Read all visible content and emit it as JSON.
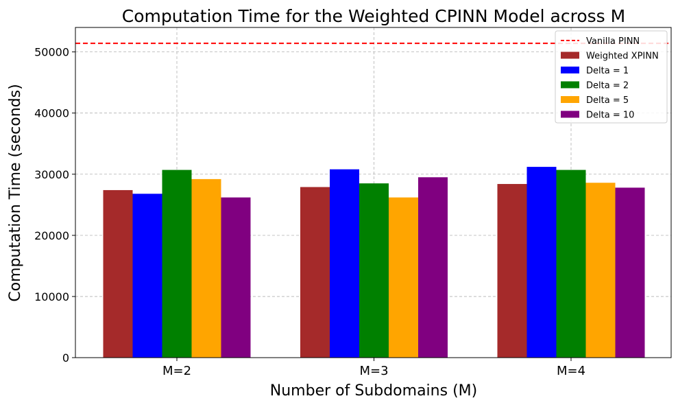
{
  "chart_data": {
    "type": "bar",
    "title": "Computation Time for the Weighted CPINN Model across M",
    "xlabel": "Number of Subdomains (M)",
    "ylabel": "Computation Time (seconds)",
    "categories": [
      "M=2",
      "M=3",
      "M=4"
    ],
    "ylim": [
      0,
      54000
    ],
    "yticks": [
      0,
      10000,
      20000,
      30000,
      40000,
      50000
    ],
    "grid": true,
    "legend_position": "top-right",
    "reference_line": {
      "name": "Vanilla PINN",
      "value": 51400,
      "color": "#ff0000",
      "style": "dashed"
    },
    "series": [
      {
        "name": "Weighted XPINN",
        "color": "#a52a2a",
        "values": [
          27400,
          27900,
          28400
        ]
      },
      {
        "name": "Delta = 1",
        "color": "#0000ff",
        "values": [
          26800,
          30800,
          31200
        ]
      },
      {
        "name": "Delta = 2",
        "color": "#008000",
        "values": [
          30700,
          28500,
          30700
        ]
      },
      {
        "name": "Delta = 5",
        "color": "#ffa500",
        "values": [
          29200,
          26200,
          28600
        ]
      },
      {
        "name": "Delta = 10",
        "color": "#800080",
        "values": [
          26200,
          29500,
          27800
        ]
      }
    ]
  }
}
